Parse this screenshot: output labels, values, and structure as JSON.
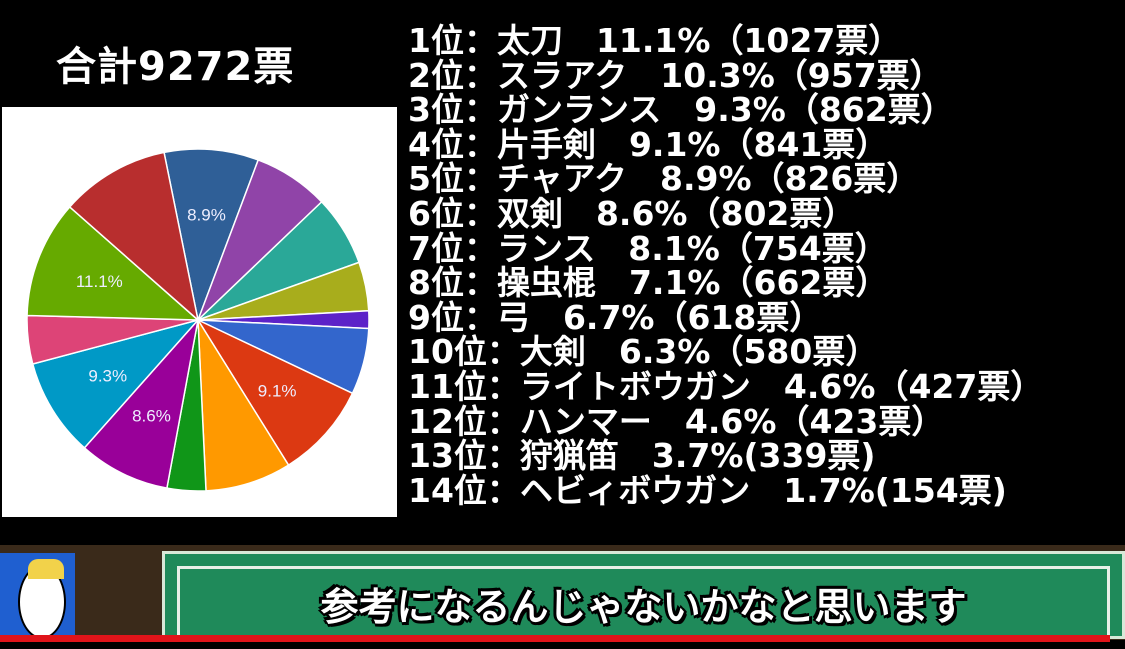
{
  "header": {
    "total": "合計9272票"
  },
  "ranking": [
    "1位：太刀　11.1%（1027票）",
    "2位：スラアク　10.3%（957票）",
    "3位：ガンランス　9.3%（862票）",
    "4位：片手剣　9.1%（841票）",
    "5位：チャアク　8.9%（826票）",
    "6位：双剣　8.6%（802票）",
    "7位：ランス　8.1%（754票）",
    "8位：操虫棍　7.1%（662票）",
    "9位：弓　6.7%（618票）",
    "10位：大剣　6.3%（580票）",
    "11位：ライトボウガン　4.6%（427票）",
    "12位：ハンマー　4.6%（423票）",
    "13位：狩猟笛　3.7%(339票)",
    "14位：ヘビィボウガン　1.7%(154票)"
  ],
  "chart_data": {
    "type": "pie",
    "slices": [
      {
        "label": "チャアク",
        "value": 826,
        "percent_label": "8.9%",
        "color": "#2f5f97"
      },
      {
        "label": "操虫棍",
        "value": 662,
        "color": "#9044a8"
      },
      {
        "label": "弓",
        "value": 618,
        "color": "#2aa898"
      },
      {
        "label": "ライトボウガン",
        "value": 427,
        "color": "#a8ad1c"
      },
      {
        "label": "ヘビィボウガン",
        "value": 154,
        "color": "#5c22c8"
      },
      {
        "label": "大剣",
        "value": 580,
        "color": "#3366cc"
      },
      {
        "label": "片手剣",
        "value": 841,
        "percent_label": "9.1%",
        "color": "#dc3912"
      },
      {
        "label": "ランス",
        "value": 754,
        "color": "#ff9900"
      },
      {
        "label": "狩猟笛",
        "value": 339,
        "color": "#109618"
      },
      {
        "label": "双剣",
        "value": 802,
        "percent_label": "8.6%",
        "color": "#990099"
      },
      {
        "label": "ガンランス",
        "value": 862,
        "percent_label": "9.3%",
        "color": "#0099c6"
      },
      {
        "label": "ハンマー",
        "value": 423,
        "color": "#dd4477"
      },
      {
        "label": "太刀",
        "value": 1027,
        "percent_label": "11.1%",
        "color": "#66aa00"
      },
      {
        "label": "スラアク",
        "value": 957,
        "color": "#b82e2e"
      }
    ]
  },
  "subtitle": {
    "caption": "参考になるんじゃないかなと思います"
  },
  "colors": {
    "caption_box": "#1f8a5a",
    "progress_bar": "#e0141a"
  }
}
